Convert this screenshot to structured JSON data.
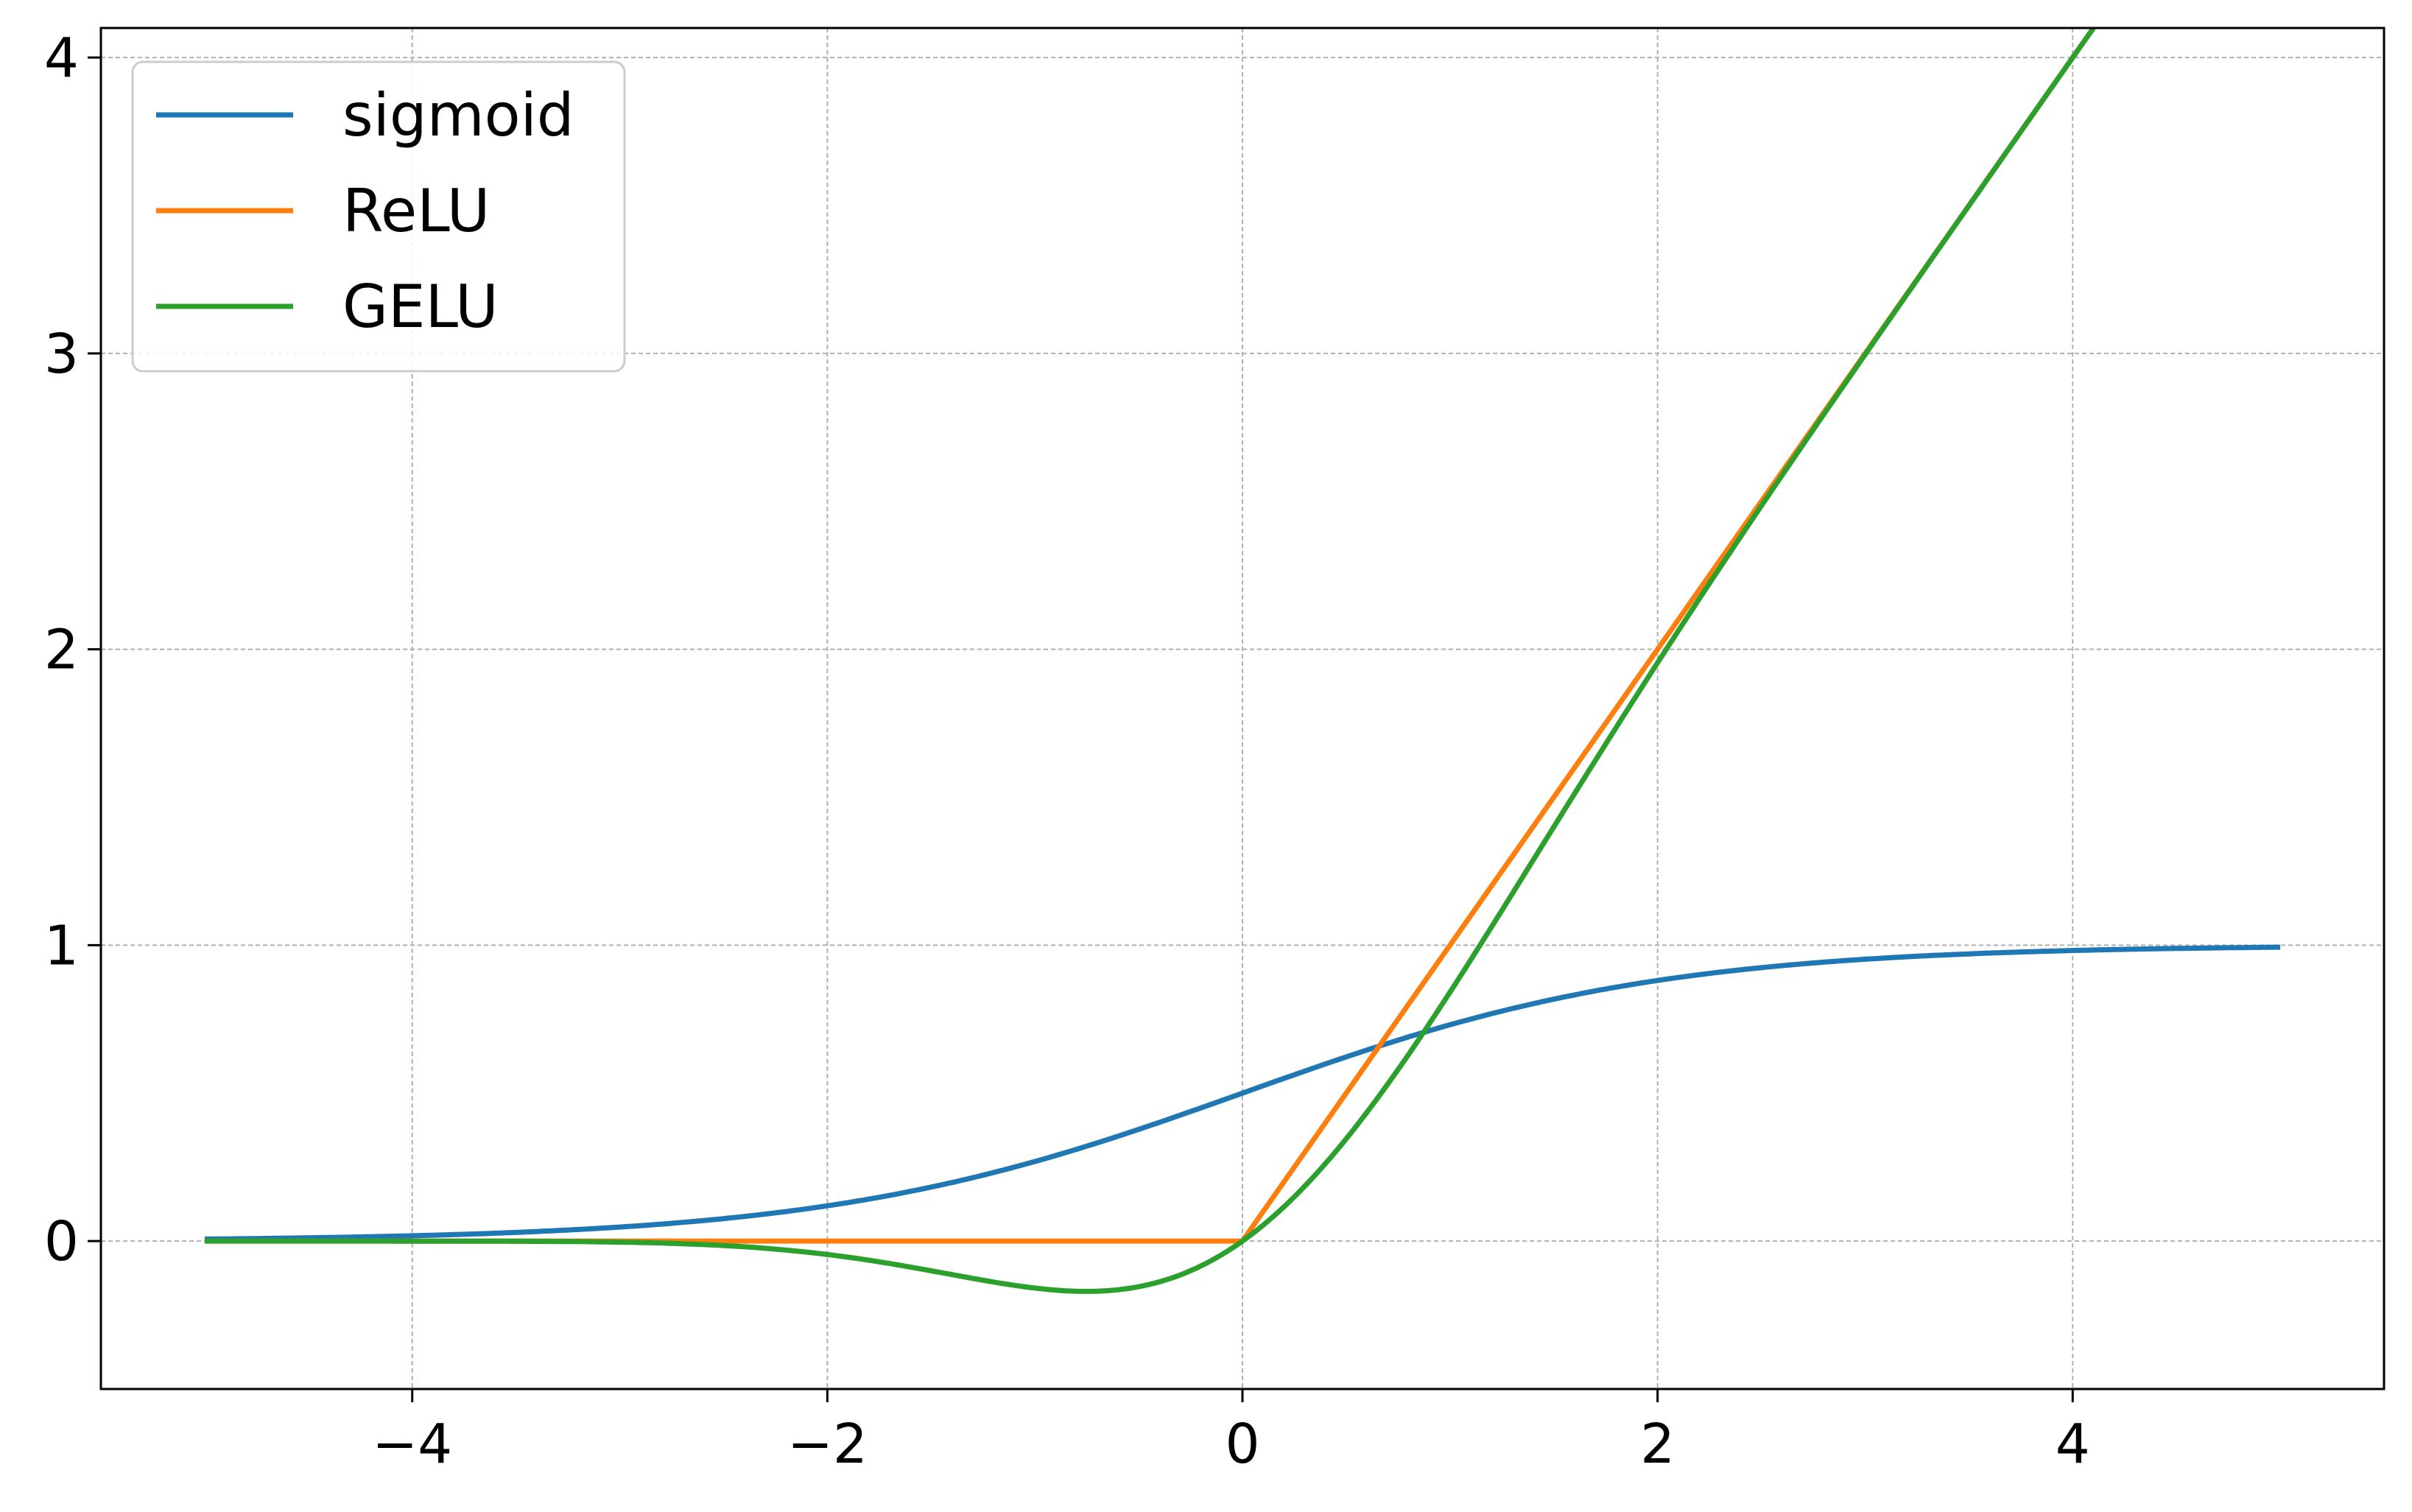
{
  "chart_data": {
    "type": "line",
    "title": "",
    "xlabel": "",
    "ylabel": "",
    "xlim": [
      -5.5,
      5.5
    ],
    "ylim": [
      -0.5,
      4.1
    ],
    "x_ticks": [
      -4,
      -2,
      0,
      2,
      4
    ],
    "x_tick_labels": [
      "−4",
      "−2",
      "0",
      "2",
      "4"
    ],
    "y_ticks": [
      0,
      1,
      2,
      3,
      4
    ],
    "y_tick_labels": [
      "0",
      "1",
      "2",
      "3",
      "4"
    ],
    "grid": true,
    "legend_position": "top-left",
    "x_domain": [
      -5,
      5
    ],
    "series": [
      {
        "name": "sigmoid",
        "color": "#1f77b4",
        "x": [
          -5,
          -4,
          -3,
          -2,
          -1,
          -0.5,
          0,
          0.5,
          1,
          2,
          3,
          4,
          5
        ],
        "y": [
          0.0067,
          0.018,
          0.047,
          0.119,
          0.269,
          0.378,
          0.5,
          0.622,
          0.731,
          0.881,
          0.953,
          0.982,
          0.993
        ]
      },
      {
        "name": "ReLU",
        "color": "#ff7f0e",
        "x": [
          -5,
          0,
          5
        ],
        "y": [
          0,
          0,
          5
        ]
      },
      {
        "name": "GELU",
        "color": "#2ca02c",
        "x": [
          -5,
          -4,
          -3,
          -2,
          -1.5,
          -1,
          -0.75,
          -0.5,
          0,
          0.5,
          1,
          1.5,
          2,
          3,
          4,
          5
        ],
        "y": [
          0,
          0,
          -0.004,
          -0.045,
          -0.1,
          -0.159,
          -0.17,
          -0.154,
          0,
          0.346,
          0.841,
          1.4,
          1.955,
          2.996,
          4.0,
          5.0
        ]
      }
    ]
  }
}
